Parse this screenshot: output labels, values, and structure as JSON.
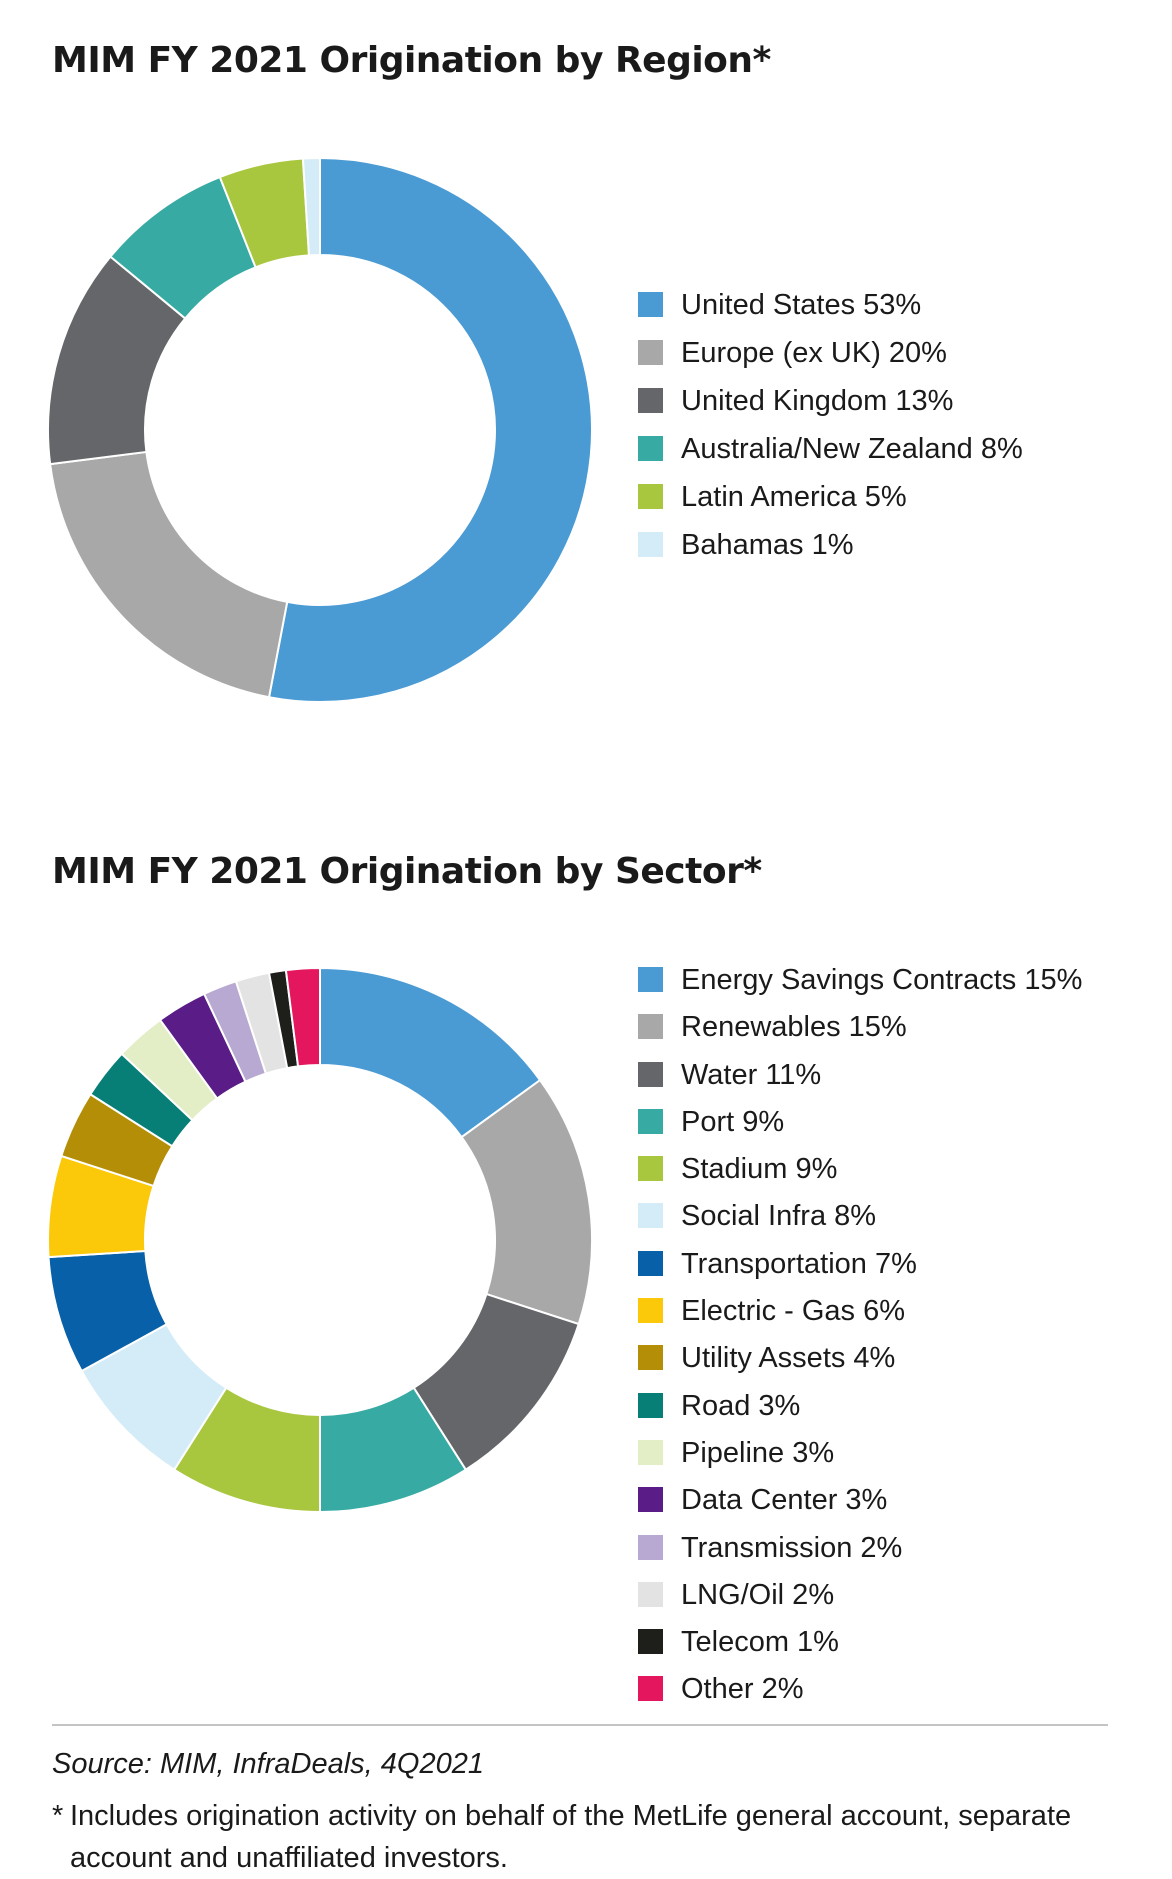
{
  "source_note": "Source: MIM, InfraDeals, 4Q2021",
  "footnote": {
    "marker": "*",
    "text": "Includes origination activity on behalf of the MetLife general account, separate account and unaffiliated investors."
  },
  "chart_data": [
    {
      "type": "pie",
      "variant": "donut",
      "title": "MIM FY 2021 Origination by Region*",
      "unit": "%",
      "legend_position": "right",
      "categories": [
        "United States",
        "Europe (ex UK)",
        "United Kingdom",
        "Australia/New Zealand",
        "Latin America",
        "Bahamas"
      ],
      "values": [
        53,
        20,
        13,
        8,
        5,
        1
      ],
      "legend_labels": [
        "United States 53%",
        "Europe (ex UK) 20%",
        "United Kingdom 13%",
        "Australia/New Zealand 8%",
        "Latin America 5%",
        "Bahamas 1%"
      ],
      "colors": [
        "#4a9ad4",
        "#a8a8a8",
        "#646669",
        "#36aaa3",
        "#a9c63f",
        "#d4ecf7"
      ]
    },
    {
      "type": "pie",
      "variant": "donut",
      "title": "MIM FY 2021 Origination by Sector*",
      "unit": "%",
      "legend_position": "right",
      "categories": [
        "Energy Savings Contracts",
        "Renewables",
        "Water",
        "Port",
        "Stadium",
        "Social Infra",
        "Transportation",
        "Electric - Gas",
        "Utility Assets",
        "Road",
        "Pipeline",
        "Data Center",
        "Transmission",
        "LNG/Oil",
        "Telecom",
        "Other"
      ],
      "values": [
        15,
        15,
        11,
        9,
        9,
        8,
        7,
        6,
        4,
        3,
        3,
        3,
        2,
        2,
        1,
        2
      ],
      "legend_labels": [
        "Energy Savings Contracts 15%",
        "Renewables 15%",
        "Water 11%",
        "Port 9%",
        "Stadium 9%",
        "Social Infra 8%",
        "Transportation 7%",
        "Electric - Gas 6%",
        "Utility Assets 4%",
        "Road 3%",
        "Pipeline 3%",
        "Data Center 3%",
        "Transmission 2%",
        "LNG/Oil 2%",
        "Telecom 1%",
        "Other 2%"
      ],
      "colors": [
        "#4a9ad4",
        "#a8a8a8",
        "#646669",
        "#36aaa3",
        "#a9c63f",
        "#d4ecf7",
        "#0861a8",
        "#fbc90a",
        "#b38e06",
        "#077f77",
        "#e3eec6",
        "#5a1d87",
        "#b8a9d2",
        "#e3e3e3",
        "#1e1e1b",
        "#e4175e"
      ]
    }
  ]
}
